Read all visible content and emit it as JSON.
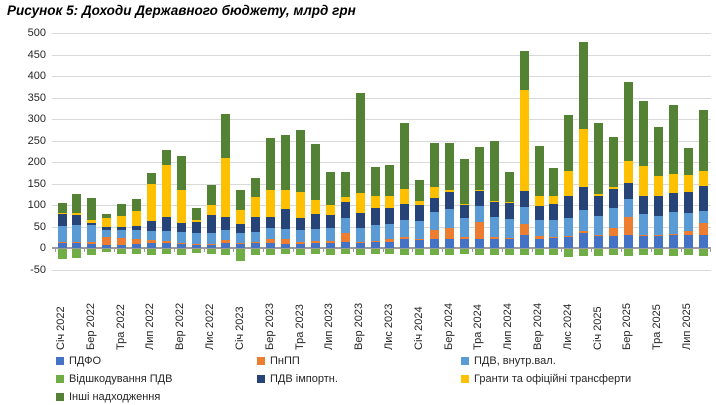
{
  "title": "Рисунок 5: Доходи Державного бюджету, млрд грн",
  "chart_data": {
    "type": "bar",
    "stacked": true,
    "unit": "млрд грн",
    "ylim": [
      -50,
      500
    ],
    "yticks": [
      500,
      450,
      400,
      350,
      300,
      250,
      200,
      150,
      100,
      50,
      0,
      -50
    ],
    "grid": true,
    "legend_position": "bottom",
    "series_keys": [
      "pdfo",
      "pnpp",
      "vat_dom",
      "vat_refund",
      "vat_imp",
      "grants",
      "other"
    ],
    "stack_order_positive": [
      0,
      1,
      2,
      4,
      5,
      6
    ],
    "negative_index": 3,
    "series": [
      {
        "key": "pdfo",
        "name": "ПДФО",
        "color": "#4472C4"
      },
      {
        "key": "pnpp",
        "name": "ПнПП",
        "color": "#ED7D31"
      },
      {
        "key": "vat_dom",
        "name": "ПДВ, внутр.вал.",
        "color": "#5B9BD5"
      },
      {
        "key": "vat_refund",
        "name": "Відшкодування ПДВ",
        "color": "#70AD47"
      },
      {
        "key": "vat_imp",
        "name": "ПДВ імпортн.",
        "color": "#264478"
      },
      {
        "key": "grants",
        "name": "Гранти та офіційні трансферти",
        "color": "#FFC000"
      },
      {
        "key": "other",
        "name": "Інші надходження",
        "color": "#548235"
      }
    ],
    "months": [
      {
        "label": "Січ 2022",
        "v": [
          12,
          2,
          37,
          -23,
          29,
          2,
          22
        ]
      },
      {
        "label": "",
        "v": [
          11,
          2,
          40,
          -20,
          23,
          5,
          44
        ]
      },
      {
        "label": "Бер 2022",
        "v": [
          9,
          5,
          40,
          -14,
          5,
          5,
          52
        ]
      },
      {
        "label": "",
        "v": [
          8,
          18,
          17,
          -8,
          6,
          21,
          9
        ]
      },
      {
        "label": "Тра 2022",
        "v": [
          8,
          16,
          17,
          -12,
          9,
          25,
          27
        ]
      },
      {
        "label": "",
        "v": [
          9,
          13,
          19,
          -11,
          11,
          34,
          27
        ]
      },
      {
        "label": "Лип 2022",
        "v": [
          11,
          8,
          21,
          -14,
          23,
          87,
          25
        ]
      },
      {
        "label": "",
        "v": [
          11,
          6,
          23,
          -12,
          31,
          122,
          34
        ]
      },
      {
        "label": "Вер 2022",
        "v": [
          9,
          2,
          27,
          -14,
          21,
          77,
          79
        ]
      },
      {
        "label": "",
        "v": [
          8,
          2,
          25,
          -10,
          25,
          5,
          28
        ]
      },
      {
        "label": "Лис 2022",
        "v": [
          8,
          2,
          25,
          -12,
          41,
          23,
          48
        ]
      },
      {
        "label": "",
        "v": [
          11,
          8,
          23,
          -15,
          29,
          138,
          103
        ]
      },
      {
        "label": "Січ 2023",
        "v": [
          9,
          2,
          25,
          -28,
          20,
          32,
          47
        ]
      },
      {
        "label": "",
        "v": [
          11,
          2,
          25,
          -14,
          33,
          47,
          44
        ]
      },
      {
        "label": "Бер 2023",
        "v": [
          11,
          11,
          25,
          -14,
          25,
          63,
          120
        ]
      },
      {
        "label": "",
        "v": [
          10,
          10,
          25,
          -12,
          46,
          44,
          127
        ]
      },
      {
        "label": "Тра 2023",
        "v": [
          10,
          5,
          28,
          -14,
          26,
          61,
          145
        ]
      },
      {
        "label": "",
        "v": [
          11,
          5,
          29,
          -12,
          34,
          32,
          130
        ]
      },
      {
        "label": "Лип 2023",
        "v": [
          12,
          5,
          30,
          -14,
          29,
          23,
          78
        ]
      },
      {
        "label": "",
        "v": [
          13,
          21,
          36,
          -12,
          38,
          10,
          59
        ]
      },
      {
        "label": "Вер 2023",
        "v": [
          13,
          2,
          32,
          -14,
          35,
          47,
          231
        ]
      },
      {
        "label": "",
        "v": [
          14,
          2,
          37,
          -12,
          40,
          29,
          67
        ]
      },
      {
        "label": "Лис 2023",
        "v": [
          14,
          8,
          34,
          -12,
          38,
          28,
          70
        ]
      },
      {
        "label": "",
        "v": [
          22,
          3,
          40,
          -15,
          38,
          35,
          152
        ]
      },
      {
        "label": "Січ 2024",
        "v": [
          18,
          2,
          43,
          -14,
          36,
          10,
          50
        ]
      },
      {
        "label": "",
        "v": [
          20,
          21,
          42,
          -14,
          33,
          26,
          103
        ]
      },
      {
        "label": "Бер 2024",
        "v": [
          21,
          26,
          43,
          -14,
          40,
          5,
          109
        ]
      },
      {
        "label": "",
        "v": [
          22,
          4,
          44,
          -12,
          29,
          4,
          105
        ]
      },
      {
        "label": "Тра 2024",
        "v": [
          22,
          38,
          38,
          -14,
          36,
          2,
          100
        ]
      },
      {
        "label": "",
        "v": [
          22,
          3,
          48,
          -14,
          34,
          3,
          140
        ]
      },
      {
        "label": "Лип 2024",
        "v": [
          21,
          2,
          44,
          -14,
          38,
          2,
          69
        ]
      },
      {
        "label": "",
        "v": [
          30,
          25,
          40,
          -15,
          38,
          235,
          90
        ]
      },
      {
        "label": "Вер 2024",
        "v": [
          21,
          6,
          38,
          -14,
          33,
          23,
          116
        ]
      },
      {
        "label": "",
        "v": [
          23,
          2,
          40,
          -14,
          38,
          17,
          65
        ]
      },
      {
        "label": "Лис 2024",
        "v": [
          25,
          3,
          42,
          -18,
          50,
          60,
          130
        ]
      },
      {
        "label": "",
        "v": [
          34,
          5,
          49,
          -16,
          54,
          134,
          204
        ]
      },
      {
        "label": "Січ 2025",
        "v": [
          27,
          3,
          44,
          -16,
          47,
          5,
          165
        ]
      },
      {
        "label": "",
        "v": [
          28,
          18,
          46,
          -14,
          46,
          3,
          118
        ]
      },
      {
        "label": "Бер 2025",
        "v": [
          30,
          42,
          42,
          -16,
          38,
          50,
          184
        ]
      },
      {
        "label": "",
        "v": [
          28,
          3,
          48,
          -14,
          42,
          70,
          150
        ]
      },
      {
        "label": "Тра 2025",
        "v": [
          28,
          3,
          44,
          -14,
          47,
          46,
          113
        ]
      },
      {
        "label": "",
        "v": [
          30,
          3,
          50,
          -16,
          46,
          42,
          161
        ]
      },
      {
        "label": "Лип 2025",
        "v": [
          30,
          10,
          42,
          -14,
          48,
          40,
          63
        ]
      },
      {
        "label": "",
        "v": [
          31,
          26,
          28,
          -16,
          60,
          35,
          142
        ]
      }
    ]
  },
  "legend": {
    "rows": [
      [
        "ПДФО",
        "ПнПП",
        "ПДВ, внутр.вал."
      ],
      [
        "Відшкодування ПДВ",
        "ПДВ імпортн.",
        "Гранти та офіційні трансферти"
      ],
      [
        "Інші надходження"
      ]
    ]
  }
}
